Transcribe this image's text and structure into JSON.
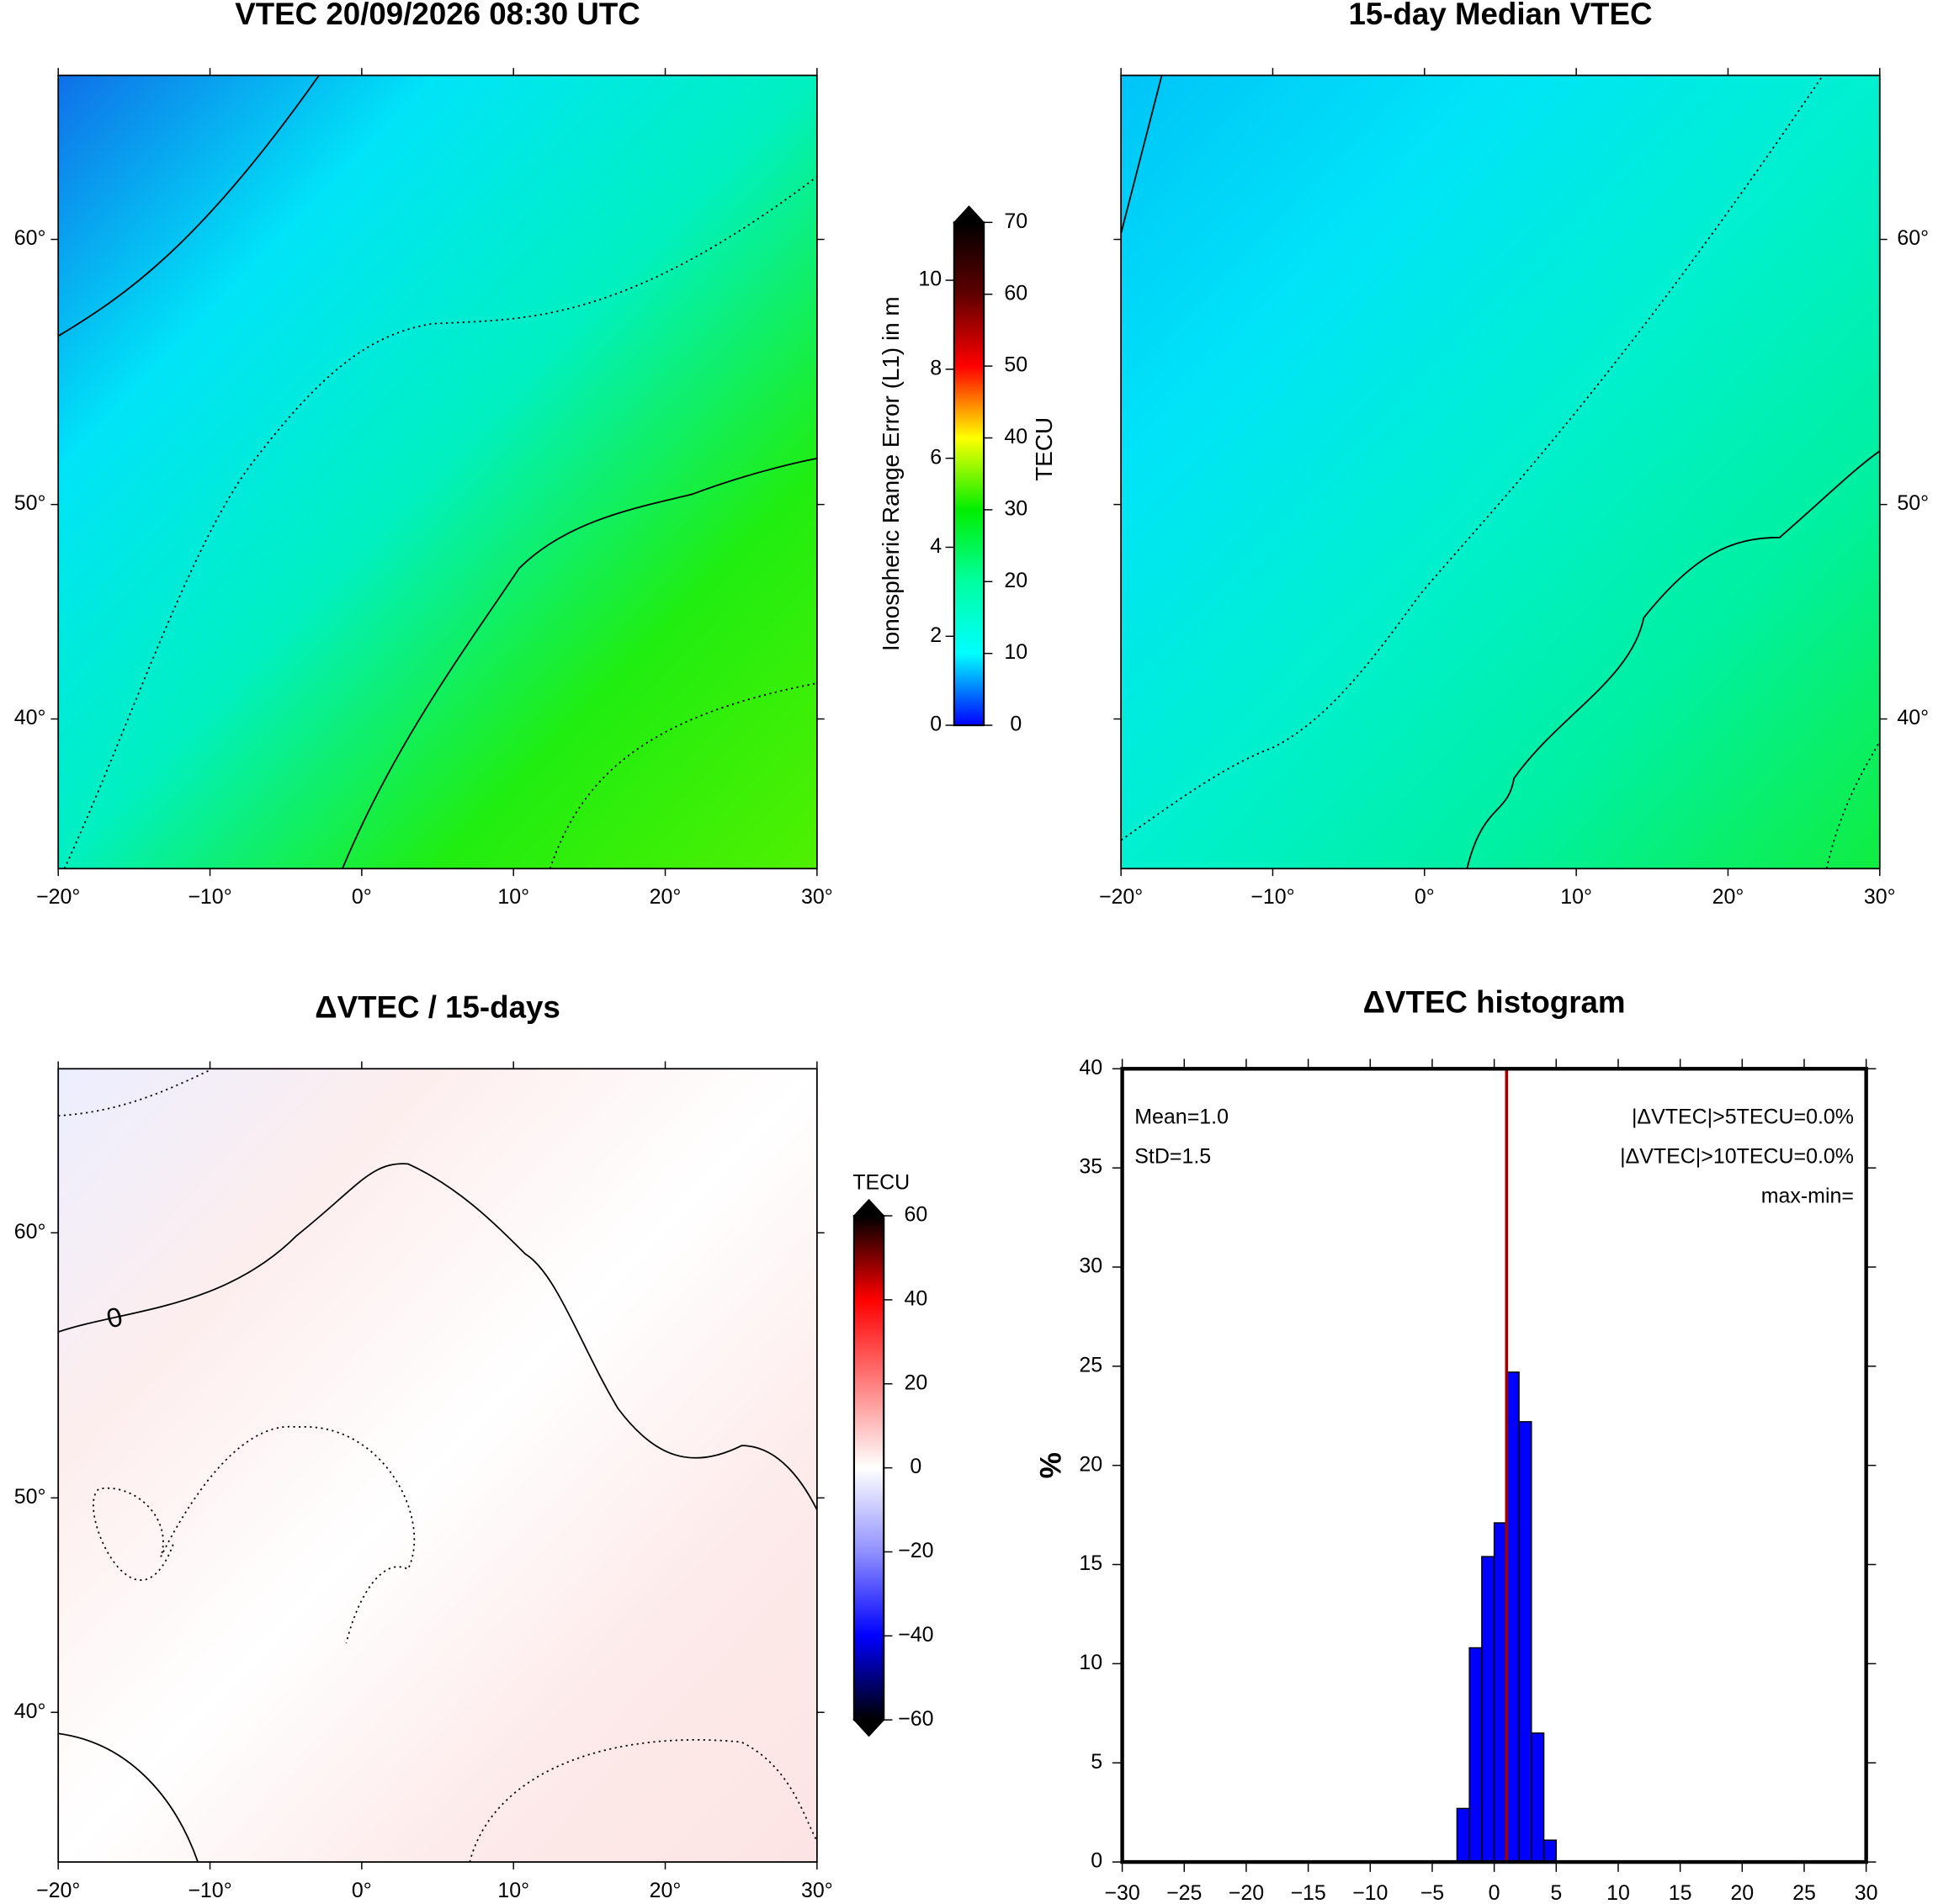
{
  "chart_data": [
    {
      "type": "map",
      "title": "VTEC 20/09/2026 08:30 UTC",
      "xlim": [
        -20,
        30
      ],
      "ylim": [
        32,
        65
      ],
      "xticks": [
        {
          "value": -20,
          "label": "−20°"
        },
        {
          "value": -10,
          "label": "−10°"
        },
        {
          "value": 0,
          "label": "0°"
        },
        {
          "value": 10,
          "label": "10°"
        },
        {
          "value": 20,
          "label": "20°"
        },
        {
          "value": 30,
          "label": "30°"
        }
      ],
      "yticks": [
        {
          "value": 40,
          "label": "40°"
        },
        {
          "value": 50,
          "label": "50°"
        },
        {
          "value": 60,
          "label": "60°"
        }
      ],
      "field_colors": [
        "#1070e8",
        "#00e4f8",
        "#00f0c0",
        "#20ee10",
        "#50f000"
      ],
      "colorbar": {
        "label": "TECU",
        "y2label": "Ionospheric Range Error (L1) in m",
        "ylim": [
          0,
          70
        ],
        "yticks": [
          0,
          10,
          20,
          30,
          40,
          50,
          60,
          70
        ],
        "y2lim": [
          0,
          11.3
        ],
        "y2ticks": [
          0,
          2,
          4,
          6,
          8,
          10
        ],
        "colormap": [
          "#0000ff",
          "#00ffff",
          "#00ffa0",
          "#00ee00",
          "#ffff00",
          "#ff0000",
          "#600000",
          "#000000"
        ]
      }
    },
    {
      "type": "map",
      "title": "15-day Median VTEC",
      "xlim": [
        -20,
        30
      ],
      "ylim": [
        32,
        65
      ],
      "xticks": [
        {
          "value": -20,
          "label": "−20°"
        },
        {
          "value": -10,
          "label": "−10°"
        },
        {
          "value": 0,
          "label": "0°"
        },
        {
          "value": 10,
          "label": "10°"
        },
        {
          "value": 20,
          "label": "20°"
        },
        {
          "value": 30,
          "label": "30°"
        }
      ],
      "yticks": [
        {
          "value": 40,
          "label": "40°"
        },
        {
          "value": 50,
          "label": "50°"
        },
        {
          "value": 60,
          "label": "60°"
        }
      ],
      "field_colors": [
        "#00c4f8",
        "#00e4f8",
        "#00f0d0",
        "#00f0a0",
        "#10ee40"
      ]
    },
    {
      "type": "map",
      "title": "ΔVTEC / 15-days",
      "contour_label": "0",
      "xlim": [
        -20,
        30
      ],
      "ylim": [
        32,
        65
      ],
      "xticks": [
        {
          "value": -20,
          "label": "−20°"
        },
        {
          "value": -10,
          "label": "−10°"
        },
        {
          "value": 0,
          "label": "0°"
        },
        {
          "value": 10,
          "label": "10°"
        },
        {
          "value": 20,
          "label": "20°"
        },
        {
          "value": 30,
          "label": "30°"
        }
      ],
      "yticks": [
        {
          "value": 40,
          "label": "40°"
        },
        {
          "value": 50,
          "label": "50°"
        },
        {
          "value": 60,
          "label": "60°"
        }
      ],
      "field_colors": [
        "#eceeff",
        "#fdeeee",
        "#ffffff",
        "#fdeaea",
        "#fde4e4"
      ],
      "colorbar": {
        "label": "TECU",
        "ylim": [
          -60,
          60
        ],
        "yticks": [
          {
            "value": -60,
            "label": "−60"
          },
          {
            "value": -40,
            "label": "−40"
          },
          {
            "value": -20,
            "label": "−20"
          },
          0,
          20,
          40,
          60
        ],
        "colormap": [
          "#000000",
          "#0000ff",
          "#9090ff",
          "#ffffff",
          "#ff8080",
          "#ff0000",
          "#000000"
        ]
      }
    },
    {
      "type": "histogram",
      "title": "ΔVTEC histogram",
      "ylabel": "%",
      "bins": [
        -3,
        -2,
        -1,
        0,
        1,
        2,
        3,
        4,
        5
      ],
      "values": [
        2.7,
        10.8,
        15.4,
        17.1,
        24.7,
        22.2,
        6.5,
        1.1
      ],
      "color": "#0000ff",
      "mean": 1.0,
      "mean_color": "#a00000",
      "xlim": [
        -30,
        30
      ],
      "ylim": [
        0,
        40
      ],
      "xticks": [
        {
          "value": -30,
          "label": "−30"
        },
        {
          "value": -25,
          "label": "−25"
        },
        {
          "value": -20,
          "label": "−20"
        },
        {
          "value": -15,
          "label": "−15"
        },
        {
          "value": -10,
          "label": "−10"
        },
        {
          "value": -5,
          "label": "−5"
        },
        0,
        5,
        10,
        15,
        20,
        25,
        30
      ],
      "yticks": [
        0,
        5,
        10,
        15,
        20,
        25,
        30,
        35,
        40
      ],
      "annotations": [
        "Mean=1.0",
        "StD=1.5",
        "|ΔVTEC|>5TECU=0.0%",
        "|ΔVTEC|>10TECU=0.0%",
        "max-min="
      ]
    }
  ]
}
